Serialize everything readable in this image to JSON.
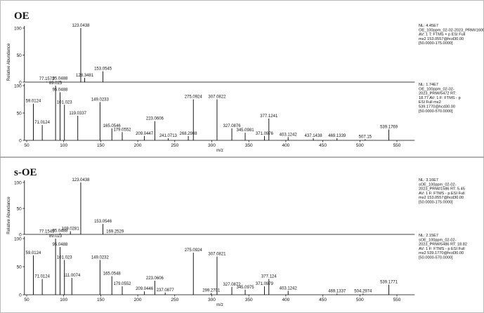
{
  "chart_data": [
    {
      "type": "stem",
      "title": "OE",
      "y_label": "Relative Abundance",
      "xlim": [
        47,
        574
      ],
      "ylim": [
        0,
        100
      ],
      "yticks": [
        0,
        50,
        100
      ],
      "x": [
        77.1572,
        95.0488,
        123.0438,
        128.3481,
        153.0545
      ],
      "values": [
        1,
        2,
        100,
        8,
        20
      ],
      "info": [
        "NL: 4.45E7",
        "OE_100ppm_02-02-2023_PRM#1600 RT: 5.50",
        "AV: 1 T: FTMS + p ESI Full",
        "ms2 153.0557@hcd30.00",
        "[50.0000-175.0000]"
      ]
    },
    {
      "type": "stem",
      "x_label": "m/z",
      "xlim": [
        47,
        574
      ],
      "xticks": [
        50,
        100,
        150,
        200,
        250,
        300,
        350,
        400,
        450,
        500,
        550
      ],
      "ylim": [
        0,
        100
      ],
      "yticks": [
        0,
        50,
        100
      ],
      "x": [
        59.0124,
        71.0124,
        89.023,
        95.0488,
        101.023,
        119.0337,
        149.0233,
        165.0546,
        179.0552,
        209.0447,
        223.0606,
        241.0713,
        268.2908,
        275.0924,
        307.0822,
        327.0876,
        345.0981,
        371.0976,
        377.1241,
        403.1242,
        437.1438,
        469.1339,
        507.15,
        539.1769
      ],
      "values": [
        67,
        28,
        100,
        88,
        65,
        45,
        70,
        22,
        15,
        8,
        35,
        4,
        8,
        75,
        75,
        22,
        14,
        8,
        40,
        6,
        4,
        4,
        2,
        20
      ],
      "info": [
        "NL: 1.74E7",
        "OE_100ppm_02-02-",
        "2023_PRM#5472 RT:",
        "18.77 AV: 1 F: FTMS - p",
        "ESI Full ms2",
        "539.1770@hcd30.00",
        "[50.0000-570.0000]"
      ]
    },
    {
      "type": "stem",
      "title": "s-OE",
      "y_label": "Relative Abundance",
      "xlim": [
        47,
        574
      ],
      "ylim": [
        0,
        100
      ],
      "yticks": [
        0,
        50,
        100
      ],
      "x": [
        77.1545,
        95.0488,
        109.0281,
        123.0438,
        153.0546,
        169.2529
      ],
      "values": [
        1,
        2,
        6,
        100,
        20,
        1
      ],
      "info": [
        "NL: 3.16E7",
        "sOE_100ppm_02-02-",
        "2023_PRM#1586 RT: 5.45",
        "AV: 1 F: FTMS - p ESI Full",
        "ms2 153.0557@hcd30.00",
        "[50.0000-175.0000]"
      ]
    },
    {
      "type": "stem",
      "x_label": "m/z",
      "xlim": [
        47,
        574
      ],
      "xticks": [
        50,
        100,
        150,
        200,
        250,
        300,
        350,
        400,
        450,
        500,
        550
      ],
      "ylim": [
        0,
        100
      ],
      "yticks": [
        0,
        50,
        100
      ],
      "x": [
        59.0124,
        71.0124,
        89.023,
        95.0488,
        101.023,
        111.0074,
        149.0232,
        165.0548,
        179.0552,
        209.0446,
        223.0606,
        237.0877,
        275.0924,
        299.2701,
        307.0821,
        327.0872,
        345.0975,
        371.0979,
        377.124,
        403.1242,
        469.1337,
        504.2974,
        539.1771
      ],
      "values": [
        70,
        28,
        100,
        85,
        62,
        30,
        62,
        33,
        15,
        6,
        25,
        4,
        75,
        3,
        68,
        14,
        9,
        15,
        28,
        7,
        2,
        2,
        18
      ],
      "info": [
        "NL: 2.15E7",
        "sOE_100ppm_02-02-",
        "2023_PRM#5486 RT: 18.82",
        "AV: 1 F: FTMS - p ESI Full",
        "ms2 539.1770@hcd30.00",
        "[50.0000-570.0000]"
      ]
    }
  ]
}
